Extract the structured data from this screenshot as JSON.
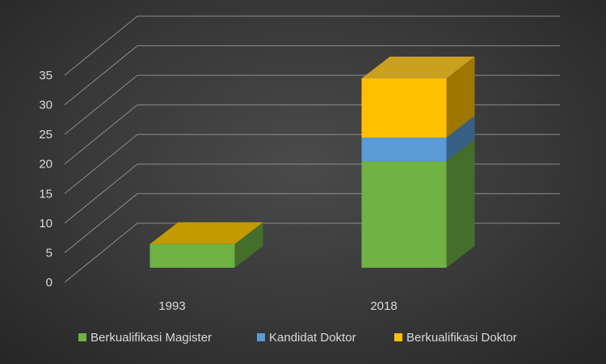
{
  "chart_data": {
    "type": "bar",
    "stacked": true,
    "three_d": true,
    "categories": [
      "1993",
      "2018"
    ],
    "series": [
      {
        "name": "Berkualifikasi Magister",
        "values": [
          4,
          18
        ],
        "color": "#70b244"
      },
      {
        "name": "Kandidat Doktor",
        "values": [
          0,
          4
        ],
        "color": "#5a9bd5"
      },
      {
        "name": "Berkualifikasi Doktor",
        "values": [
          0,
          10
        ],
        "color": "#ffc000"
      }
    ],
    "ylim": [
      0,
      35
    ],
    "yticks": [
      0,
      5,
      10,
      15,
      20,
      25,
      30,
      35
    ],
    "grid": true,
    "legend_position": "bottom",
    "title": "",
    "xlabel": "",
    "ylabel": ""
  }
}
